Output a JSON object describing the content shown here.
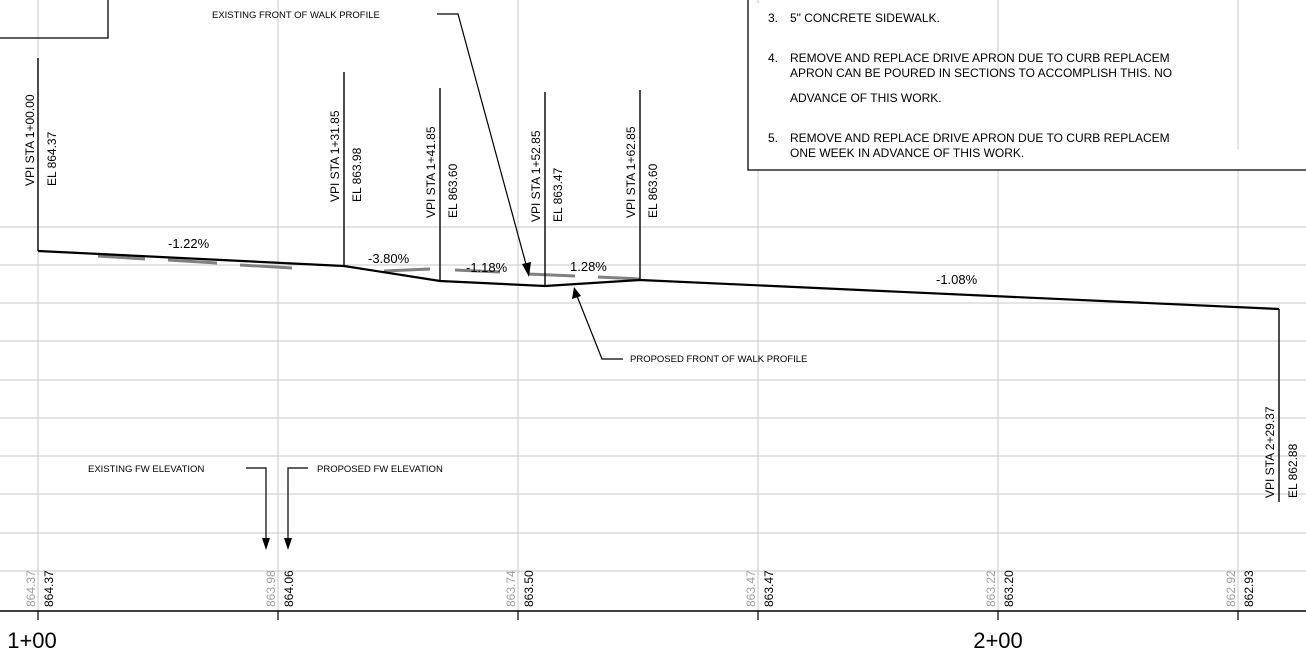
{
  "notes": {
    "items": [
      {
        "num": "3.",
        "lines": [
          "5\" CONCRETE SIDEWALK."
        ]
      },
      {
        "num": "4.",
        "lines": [
          "REMOVE AND REPLACE DRIVE APRON DUE TO CURB REPLACEM",
          "APRON CAN BE POURED IN SECTIONS TO ACCOMPLISH THIS. NO",
          "ADVANCE OF THIS WORK."
        ]
      },
      {
        "num": "5.",
        "lines": [
          "REMOVE AND REPLACE DRIVE APRON DUE TO CURB REPLACEM",
          "ONE WEEK IN ADVANCE OF THIS WORK."
        ]
      }
    ]
  },
  "callouts": {
    "existing_profile": "EXISTING FRONT OF WALK PROFILE",
    "proposed_profile": "PROPOSED FRONT OF WALK PROFILE",
    "existing_fw_elev": "EXISTING FW ELEVATION",
    "proposed_fw_elev": "PROPOSED FW ELEVATION"
  },
  "vpis": [
    {
      "sta": "VPI STA 1+00.00",
      "el": "EL 864.37"
    },
    {
      "sta": "VPI STA 1+31.85",
      "el": "EL 863.98"
    },
    {
      "sta": "VPI STA 1+41.85",
      "el": "EL 863.60"
    },
    {
      "sta": "VPI STA 1+52.85",
      "el": "EL 863.47"
    },
    {
      "sta": "VPI STA 1+62.85",
      "el": "EL 863.60"
    },
    {
      "sta": "VPI STA 2+29.37",
      "el": "EL 862.88"
    }
  ],
  "grades": [
    "-1.22%",
    "-3.80%",
    "-1.18%",
    "1.28%",
    "-1.08%"
  ],
  "elevations": [
    {
      "existing": "864.37",
      "proposed": "864.37"
    },
    {
      "existing": "863.98",
      "proposed": "864.06"
    },
    {
      "existing": "863.74",
      "proposed": "863.50"
    },
    {
      "existing": "863.47",
      "proposed": "863.47"
    },
    {
      "existing": "863.22",
      "proposed": "863.20"
    },
    {
      "existing": "862.92",
      "proposed": "862.93"
    }
  ],
  "stations": [
    "1+00",
    "2+00"
  ],
  "colors": {
    "line": "#000000",
    "grid": "#c8c8c8",
    "existing": "#808080",
    "existing_text": "#a0a0a0"
  }
}
